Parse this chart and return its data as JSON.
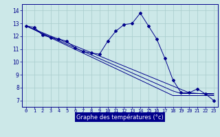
{
  "xlabel": "Graphe des températures (°c)",
  "x_ticks": [
    0,
    1,
    2,
    3,
    4,
    5,
    6,
    7,
    8,
    9,
    10,
    11,
    12,
    13,
    14,
    15,
    16,
    17,
    18,
    19,
    20,
    21,
    22,
    23
  ],
  "ylim": [
    6.5,
    14.5
  ],
  "yticks": [
    7,
    8,
    9,
    10,
    11,
    12,
    13,
    14
  ],
  "bg_color": "#cce8e8",
  "line_color": "#00008b",
  "grid_color": "#a8cccc",
  "series1": [
    12.8,
    12.7,
    12.1,
    11.9,
    11.8,
    11.6,
    11.1,
    10.8,
    10.7,
    10.6,
    11.6,
    12.4,
    12.9,
    13.0,
    13.8,
    12.8,
    11.8,
    10.3,
    8.6,
    7.6,
    7.6,
    7.9,
    7.5,
    7.0
  ],
  "trend1": [
    12.8,
    12.55,
    12.28,
    12.02,
    11.76,
    11.5,
    11.24,
    10.98,
    10.72,
    10.46,
    10.2,
    9.94,
    9.68,
    9.42,
    9.16,
    8.9,
    8.64,
    8.38,
    8.12,
    7.86,
    7.6,
    7.55,
    7.5,
    7.45
  ],
  "trend2": [
    12.8,
    12.52,
    12.22,
    11.94,
    11.66,
    11.38,
    11.1,
    10.82,
    10.54,
    10.26,
    9.98,
    9.7,
    9.42,
    9.14,
    8.86,
    8.58,
    8.3,
    8.02,
    7.74,
    7.54,
    7.54,
    7.54,
    7.54,
    7.54
  ],
  "trend3": [
    12.8,
    12.5,
    12.18,
    11.88,
    11.58,
    11.28,
    10.98,
    10.68,
    10.38,
    10.08,
    9.78,
    9.48,
    9.18,
    8.88,
    8.58,
    8.28,
    7.98,
    7.68,
    7.38,
    7.38,
    7.38,
    7.38,
    7.38,
    7.38
  ]
}
